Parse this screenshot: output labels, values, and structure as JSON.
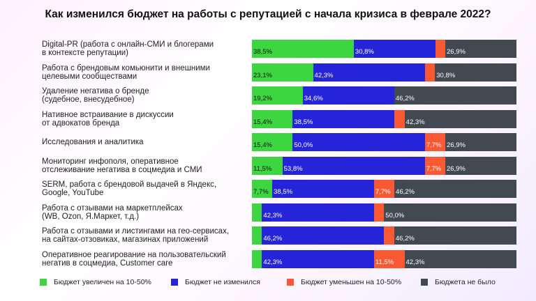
{
  "chart_data": {
    "type": "bar",
    "orientation": "horizontal",
    "stacked": true,
    "title": "Как изменился бюджет на работы с репутацией с начала кризиса в феврале 2022?",
    "categories": [
      "Digital-PR (работа с онлайн-СМИ и блогерами\nв контексте репутации)",
      "Работа с брендовым комьюнити и внешними\nцелевыми сообществами",
      "Удаление негатива о бренде\n(судебное, внесудебное)",
      "Нативное встраивание в дискуссии\nот адвокатов бренда",
      "Исследования и аналитика",
      "Мониторинг инфополя, оперативное\nотслеживание негатива в соцмедиа и СМИ",
      "SERM, работа с брендовой выдачей в Яндекс,\nGoogle, YouTube",
      "Работа с отзывами на маркетплейсах\n(WB, Ozon, Я.Маркет, т.д.)",
      "Работа с отзывами и листингами на гео-сервисах,\nна сайтах-отзовиках, магазинах приложений",
      "Оперативное реагирование на пользовательский\nнегатив в соцмедиа, Customer care"
    ],
    "series": [
      {
        "name": "Бюджет увеличен на 10-50%",
        "color": "#3dd640",
        "values": [
          38.5,
          23.1,
          19.2,
          15.4,
          15.4,
          11.5,
          7.7,
          3.8,
          3.8,
          3.8
        ],
        "labels": [
          "38,5%",
          "23,1%",
          "19,2%",
          "15,4%",
          "15,4%",
          "11,5%",
          "7,7%",
          "",
          "",
          ""
        ]
      },
      {
        "name": "Бюджет не изменился",
        "color": "#2524d8",
        "values": [
          30.8,
          42.3,
          34.6,
          38.5,
          50.0,
          53.8,
          38.5,
          42.3,
          46.2,
          42.3
        ],
        "labels": [
          "30,8%",
          "42,3%",
          "34,6%",
          "38,5%",
          "50,0%",
          "53,8%",
          "38,5%",
          "42,3%",
          "46,2%",
          "42,3%"
        ]
      },
      {
        "name": "Бюджет уменьшен на 10-50%",
        "color": "#fa5a33",
        "values": [
          3.8,
          3.8,
          0,
          3.8,
          7.7,
          7.7,
          7.7,
          3.8,
          3.8,
          11.5
        ],
        "labels": [
          "",
          "",
          "",
          "",
          "7,7%",
          "7,7%",
          "7,7%",
          "",
          "",
          "11,5%"
        ]
      },
      {
        "name": "Бюджета не было",
        "color": "#424950",
        "values": [
          26.9,
          30.8,
          46.2,
          42.3,
          26.9,
          26.9,
          46.2,
          50.0,
          46.2,
          42.3
        ],
        "labels": [
          "26,9%",
          "30,8%",
          "46,2%",
          "42,3%",
          "26,9%",
          "26,9%",
          "46,2%",
          "50,0%",
          "46,2%",
          "42,3%"
        ]
      }
    ],
    "xlim": [
      0,
      100
    ],
    "grid": false,
    "legend_position": "bottom"
  }
}
